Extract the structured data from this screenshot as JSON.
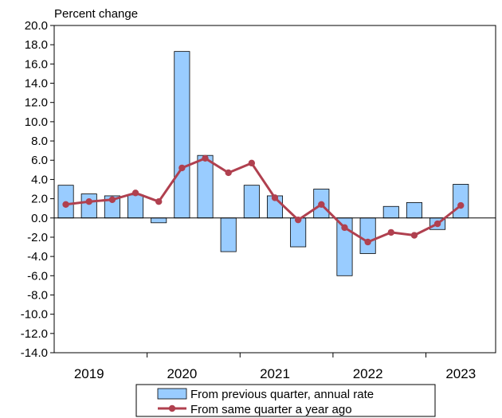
{
  "chart_data": {
    "type": "bar",
    "unit_label": "Percent change",
    "y_axis": {
      "min": -14.0,
      "max": 20.0,
      "step": 2.0,
      "tick_labels": [
        "20.0",
        "18.0",
        "16.0",
        "14.0",
        "12.0",
        "10.0",
        "8.0",
        "6.0",
        "4.0",
        "2.0",
        "0.0",
        "-2.0",
        "-4.0",
        "-6.0",
        "-8.0",
        "-10.0",
        "-12.0",
        "-14.0"
      ]
    },
    "x_axis": {
      "year_labels": [
        "2019",
        "2020",
        "2021",
        "2022",
        "2023"
      ]
    },
    "quarters": [
      "2019Q1",
      "2019Q2",
      "2019Q3",
      "2019Q4",
      "2020Q1",
      "2020Q2",
      "2020Q3",
      "2020Q4",
      "2021Q1",
      "2021Q2",
      "2021Q3",
      "2021Q4",
      "2022Q1",
      "2022Q2",
      "2022Q3",
      "2022Q4",
      "2023Q1",
      "2023Q2",
      "2023Q3"
    ],
    "series": [
      {
        "name": "From previous quarter, annual rate",
        "kind": "bar",
        "color": "#99ccff",
        "values": [
          3.4,
          2.5,
          2.3,
          2.4,
          -0.5,
          17.3,
          6.5,
          -3.5,
          3.4,
          2.3,
          -3.0,
          3.0,
          -6.0,
          -3.7,
          1.2,
          1.6,
          -1.2,
          3.5,
          null
        ]
      },
      {
        "name": "From same quarter a year ago",
        "kind": "line",
        "color": "#b0404f",
        "values": [
          1.4,
          1.7,
          1.9,
          2.6,
          1.7,
          5.2,
          6.2,
          4.7,
          5.7,
          2.1,
          -0.2,
          1.4,
          -1.0,
          -2.5,
          -1.5,
          -1.8,
          -0.6,
          1.3,
          null
        ]
      }
    ],
    "grid": false,
    "legend_position": "bottom"
  }
}
